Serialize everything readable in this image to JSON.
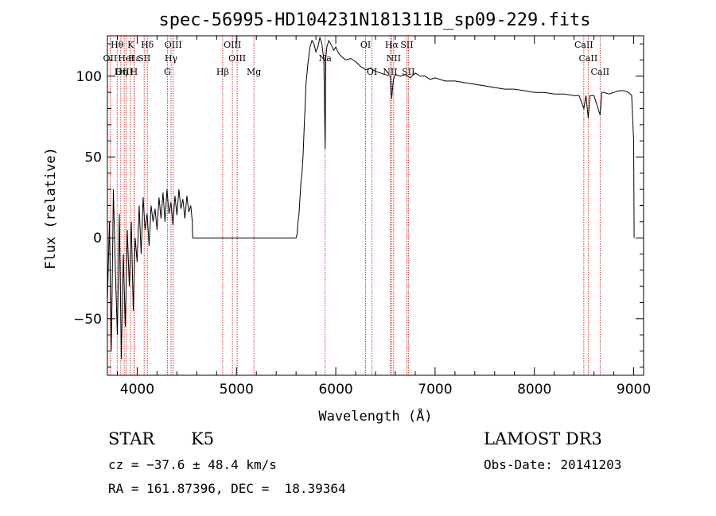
{
  "chart_data": {
    "type": "line",
    "title": "spec-56995-HD104231N181311B_sp09-229.fits",
    "xlabel": "Wavelength (Å)",
    "ylabel": "Flux (relative)",
    "xlim": [
      3700,
      9100
    ],
    "ylim": [
      -85,
      125
    ],
    "x_ticks": [
      4000,
      5000,
      6000,
      7000,
      8000,
      9000
    ],
    "x_tick_labels": [
      "4000",
      "5000",
      "6000",
      "7000",
      "8000",
      "9000"
    ],
    "y_ticks": [
      -50,
      0,
      50,
      100
    ],
    "y_tick_labels": [
      "−50",
      "0",
      "50",
      "100"
    ],
    "grid": false,
    "series": [
      {
        "x": [
          3700,
          3720,
          3740,
          3760,
          3780,
          3800,
          3820,
          3840,
          3860,
          3880,
          3900,
          3920,
          3940,
          3960,
          3980,
          4000,
          4020,
          4040,
          4060,
          4080,
          4100,
          4120,
          4140,
          4160,
          4180,
          4200,
          4220,
          4240,
          4260,
          4280,
          4300,
          4320,
          4340,
          4360,
          4380,
          4400,
          4420,
          4440,
          4460,
          4480,
          4500,
          4520,
          4540,
          4555,
          4560,
          5600,
          5610,
          5620,
          5630,
          5640,
          5650,
          5660,
          5670,
          5680,
          5690,
          5700,
          5720,
          5740,
          5760,
          5780,
          5800,
          5820,
          5840,
          5860,
          5880,
          5893,
          5900,
          5910,
          5930,
          5950,
          5980,
          6000,
          6030,
          6060,
          6100,
          6150,
          6200,
          6250,
          6300,
          6350,
          6400,
          6450,
          6500,
          6550,
          6563,
          6580,
          6600,
          6650,
          6700,
          6750,
          6800,
          6850,
          6900,
          6950,
          7000,
          7100,
          7200,
          7300,
          7400,
          7500,
          7600,
          7700,
          7800,
          7900,
          8000,
          8100,
          8200,
          8300,
          8400,
          8450,
          8498,
          8520,
          8542,
          8560,
          8600,
          8662,
          8680,
          8700,
          8750,
          8800,
          8850,
          8900,
          8950,
          8980,
          9000,
          9005
        ],
        "y": [
          -40,
          10,
          -70,
          30,
          -20,
          -60,
          15,
          -75,
          -10,
          -55,
          5,
          -30,
          10,
          -45,
          0,
          -15,
          20,
          -10,
          25,
          5,
          15,
          -5,
          20,
          10,
          18,
          5,
          25,
          12,
          28,
          10,
          30,
          15,
          22,
          8,
          26,
          14,
          30,
          18,
          24,
          12,
          26,
          16,
          20,
          10,
          0,
          0,
          2,
          10,
          15,
          25,
          35,
          40,
          50,
          65,
          80,
          95,
          108,
          118,
          122,
          120,
          115,
          118,
          124,
          120,
          110,
          55,
          112,
          118,
          122,
          120,
          116,
          118,
          114,
          112,
          110,
          111,
          109,
          106,
          104,
          105,
          103,
          102,
          101,
          100,
          86,
          98,
          101,
          100,
          101,
          99,
          102,
          100,
          100,
          98,
          99,
          97,
          97,
          96,
          95,
          94,
          93,
          92,
          92,
          91,
          90,
          90,
          89,
          89,
          88,
          88,
          80,
          88,
          74,
          88,
          88,
          76,
          90,
          90,
          89,
          90,
          91,
          91,
          90,
          88,
          60,
          0
        ]
      }
    ],
    "spectral_lines": [
      {
        "name": "Hθ",
        "wave": 3798,
        "tier": 0
      },
      {
        "name": "OII",
        "wave": 3727,
        "tier": 1
      },
      {
        "name": "OIII",
        "wave": 3869,
        "tier": 2
      },
      {
        "name": "K",
        "wave": 3934,
        "tier": 0
      },
      {
        "name": "Hε",
        "wave": 3970,
        "tier": 1
      },
      {
        "name": "HeI",
        "wave": 3889,
        "tier": 1
      },
      {
        "name": "H",
        "wave": 3968,
        "tier": 2
      },
      {
        "name": "Hη",
        "wave": 3835,
        "tier": 2
      },
      {
        "name": "Hδ",
        "wave": 4102,
        "tier": 0
      },
      {
        "name": "SII",
        "wave": 4070,
        "tier": 1
      },
      {
        "name": "OIII",
        "wave": 4363,
        "tier": 0
      },
      {
        "name": "Hγ",
        "wave": 4341,
        "tier": 1
      },
      {
        "name": "G",
        "wave": 4304,
        "tier": 2
      },
      {
        "name": "Hβ",
        "wave": 4861,
        "tier": 2
      },
      {
        "name": "OIII",
        "wave": 4959,
        "tier": 0
      },
      {
        "name": "OIII",
        "wave": 5007,
        "tier": 1
      },
      {
        "name": "Mg",
        "wave": 5175,
        "tier": 2
      },
      {
        "name": "Na",
        "wave": 5893,
        "tier": 1
      },
      {
        "name": "OI",
        "wave": 6300,
        "tier": 0
      },
      {
        "name": "OI",
        "wave": 6364,
        "tier": 2
      },
      {
        "name": "Hα",
        "wave": 6563,
        "tier": 0
      },
      {
        "name": "NII",
        "wave": 6548,
        "tier": 2
      },
      {
        "name": "NII",
        "wave": 6583,
        "tier": 1
      },
      {
        "name": "SII",
        "wave": 6716,
        "tier": 0
      },
      {
        "name": "SII",
        "wave": 6731,
        "tier": 2
      },
      {
        "name": "CaII",
        "wave": 8498,
        "tier": 0
      },
      {
        "name": "CaII",
        "wave": 8542,
        "tier": 1
      },
      {
        "name": "CaII",
        "wave": 8662,
        "tier": 2
      }
    ],
    "colors": {
      "spectrum": "#000000",
      "lines": "#cc0000",
      "axes": "#000000"
    }
  },
  "info": {
    "class": "STAR",
    "subclass": "K5",
    "survey": "LAMOST DR3",
    "cz": "cz = −37.6 ± 48.4 km/s",
    "obs_date": "Obs-Date: 20141203",
    "radec": "RA = 161.87396, DEC =  18.39364"
  }
}
